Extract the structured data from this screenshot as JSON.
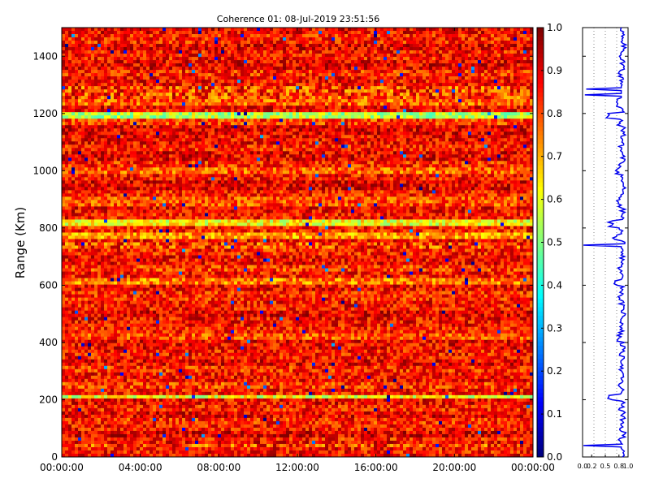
{
  "chart_data": {
    "type": "heatmap",
    "title": "Coherence 01: 08-Jul-2019 23:51:56",
    "ylabel": "Range (Km)",
    "xlabel": "",
    "x_ticks": [
      "00:00:00",
      "04:00:00",
      "08:00:00",
      "12:00:00",
      "16:00:00",
      "20:00:00",
      "00:00:00"
    ],
    "y_ticks": [
      0,
      200,
      400,
      600,
      800,
      1000,
      1200,
      1400
    ],
    "ylim": [
      0,
      1500
    ],
    "colorbar": {
      "colormap": "jet",
      "range": [
        0.0,
        1.0
      ],
      "ticks": [
        "0.0",
        "0.1",
        "0.2",
        "0.3",
        "0.4",
        "0.5",
        "0.6",
        "0.7",
        "0.8",
        "0.9",
        "1.0"
      ]
    },
    "row_mean_coherence": [
      [
        1485,
        0.88
      ],
      [
        1460,
        0.85
      ],
      [
        1430,
        0.9
      ],
      [
        1400,
        0.86
      ],
      [
        1370,
        0.89
      ],
      [
        1340,
        0.84
      ],
      [
        1310,
        0.87
      ],
      [
        1285,
        0.08
      ],
      [
        1265,
        0.05
      ],
      [
        1240,
        0.78
      ],
      [
        1210,
        0.88
      ],
      [
        1195,
        0.55
      ],
      [
        1170,
        0.82
      ],
      [
        1140,
        0.9
      ],
      [
        1110,
        0.88
      ],
      [
        1080,
        0.85
      ],
      [
        1050,
        0.89
      ],
      [
        1020,
        0.84
      ],
      [
        1000,
        0.78
      ],
      [
        980,
        0.86
      ],
      [
        950,
        0.9
      ],
      [
        920,
        0.85
      ],
      [
        890,
        0.8
      ],
      [
        860,
        0.88
      ],
      [
        840,
        0.86
      ],
      [
        815,
        0.62
      ],
      [
        790,
        0.85
      ],
      [
        770,
        0.72
      ],
      [
        750,
        0.87
      ],
      [
        740,
        0.02
      ],
      [
        720,
        0.85
      ],
      [
        690,
        0.88
      ],
      [
        660,
        0.82
      ],
      [
        630,
        0.86
      ],
      [
        610,
        0.75
      ],
      [
        590,
        0.88
      ],
      [
        560,
        0.84
      ],
      [
        530,
        0.86
      ],
      [
        500,
        0.9
      ],
      [
        470,
        0.87
      ],
      [
        440,
        0.85
      ],
      [
        420,
        0.8
      ],
      [
        390,
        0.88
      ],
      [
        360,
        0.86
      ],
      [
        330,
        0.89
      ],
      [
        300,
        0.84
      ],
      [
        280,
        0.87
      ],
      [
        250,
        0.82
      ],
      [
        230,
        0.86
      ],
      [
        210,
        0.6
      ],
      [
        190,
        0.88
      ],
      [
        170,
        0.85
      ],
      [
        150,
        0.89
      ],
      [
        120,
        0.84
      ],
      [
        100,
        0.86
      ],
      [
        80,
        0.9
      ],
      [
        60,
        0.85
      ],
      [
        45,
        0.88
      ],
      [
        40,
        0.02
      ],
      [
        20,
        0.86
      ],
      [
        5,
        0.88
      ]
    ],
    "profile_x_ticks": [
      "0.0",
      "0.2",
      "0.5",
      "0.8",
      "1.0"
    ],
    "profile_xlim": [
      0.0,
      1.0
    ]
  }
}
